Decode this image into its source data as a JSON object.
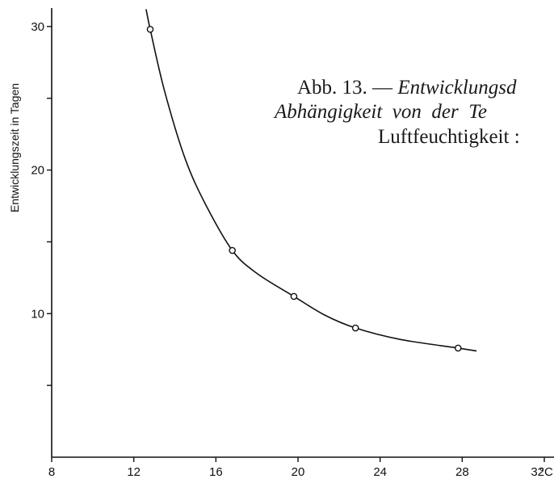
{
  "chart_data": {
    "type": "line",
    "ylabel": "Entwicklungszeit in Tagen",
    "x_ticks": [
      "8",
      "12",
      "16",
      "20",
      "24",
      "28",
      "32"
    ],
    "x_unit": "°C",
    "y_ticks": [
      "10",
      "20",
      "30"
    ],
    "xlim": [
      8,
      32
    ],
    "ylim": [
      0,
      31
    ],
    "grid": false,
    "series": [
      {
        "points": [
          {
            "x": 12.8,
            "y": 29.8
          },
          {
            "x": 16.8,
            "y": 14.4
          },
          {
            "x": 19.8,
            "y": 11.2
          },
          {
            "x": 22.8,
            "y": 9.0
          },
          {
            "x": 27.8,
            "y": 7.6
          }
        ],
        "curve": [
          {
            "x": 12.6,
            "y": 31.2
          },
          {
            "x": 12.8,
            "y": 29.8
          },
          {
            "x": 13.5,
            "y": 25.5
          },
          {
            "x": 14.5,
            "y": 20.8
          },
          {
            "x": 15.5,
            "y": 17.6
          },
          {
            "x": 16.8,
            "y": 14.4
          },
          {
            "x": 18.0,
            "y": 12.8
          },
          {
            "x": 19.8,
            "y": 11.2
          },
          {
            "x": 21.3,
            "y": 9.9
          },
          {
            "x": 22.8,
            "y": 9.0
          },
          {
            "x": 25.0,
            "y": 8.2
          },
          {
            "x": 27.8,
            "y": 7.6
          },
          {
            "x": 28.7,
            "y": 7.4
          }
        ]
      }
    ],
    "caption": {
      "line1_prefix": "Abb. 13. — ",
      "line1_italic": "Entwicklungsd",
      "line2_italic": "Abhängigkeit  von  der  Te",
      "line3": "Luftfeuchtigkeit :"
    }
  }
}
